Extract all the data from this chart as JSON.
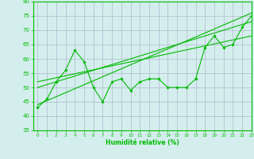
{
  "x_data": [
    0,
    1,
    2,
    3,
    4,
    5,
    6,
    7,
    8,
    9,
    10,
    11,
    12,
    13,
    14,
    15,
    16,
    17,
    18,
    19,
    20,
    21,
    22,
    23
  ],
  "y_main": [
    43,
    46,
    52,
    56,
    63,
    59,
    50,
    45,
    52,
    53,
    49,
    52,
    53,
    53,
    50,
    50,
    50,
    53,
    64,
    68,
    64,
    65,
    71,
    75
  ],
  "trend1_x": [
    0,
    23
  ],
  "trend1_y": [
    44,
    76
  ],
  "trend2_x": [
    0,
    23
  ],
  "trend2_y": [
    50,
    73
  ],
  "trend3_x": [
    0,
    23
  ],
  "trend3_y": [
    52,
    68
  ],
  "line_color": "#00bb00",
  "bg_color": "#d4eeee",
  "grid_color": "#b0b8cc",
  "xlabel": "Humidité relative (%)",
  "ylim": [
    35,
    80
  ],
  "xlim": [
    -0.5,
    23
  ],
  "yticks": [
    35,
    40,
    45,
    50,
    55,
    60,
    65,
    70,
    75,
    80
  ],
  "xticks": [
    0,
    1,
    2,
    3,
    4,
    5,
    6,
    7,
    8,
    9,
    10,
    11,
    12,
    13,
    14,
    15,
    16,
    17,
    18,
    19,
    20,
    21,
    22,
    23
  ]
}
